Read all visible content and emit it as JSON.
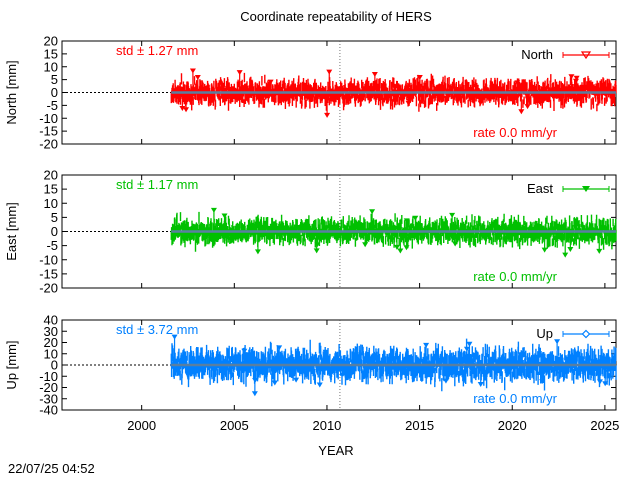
{
  "title": "Coordinate repeatability of HERS",
  "timestamp": "22/07/25 04:52",
  "xlabel": "YEAR",
  "xticks": [
    "2000",
    "2005",
    "2010",
    "2015",
    "2020",
    "2025"
  ],
  "colors": {
    "north": "#ff0000",
    "east": "#00c000",
    "up": "#0080ff",
    "trend": "#5a7fa0"
  },
  "chart_data": [
    {
      "type": "scatter",
      "series": [
        {
          "name": "North"
        }
      ],
      "ylabel": "North [mm]",
      "ylim": [
        -20,
        20
      ],
      "yticks": [
        "20",
        "15",
        "10",
        "5",
        "0",
        "-5",
        "-10",
        "-15",
        "-20"
      ],
      "xlim": [
        1995.7,
        2025.6
      ],
      "data_range": [
        2001.6,
        2025.6
      ],
      "std_label": "std ± 1.27 mm",
      "rate_label": "rate  0.0 mm/yr",
      "rate": 0.0,
      "std": 1.27,
      "reference_line_x": 2010.7
    },
    {
      "type": "scatter",
      "series": [
        {
          "name": "East"
        }
      ],
      "ylabel": "East [mm]",
      "ylim": [
        -20,
        20
      ],
      "yticks": [
        "20",
        "15",
        "10",
        "5",
        "0",
        "-5",
        "-10",
        "-15",
        "-20"
      ],
      "xlim": [
        1995.7,
        2025.6
      ],
      "data_range": [
        2001.6,
        2025.6
      ],
      "std_label": "std ± 1.17 mm",
      "rate_label": "rate  0.0 mm/yr",
      "rate": 0.0,
      "std": 1.17,
      "reference_line_x": 2010.7
    },
    {
      "type": "scatter",
      "series": [
        {
          "name": "Up"
        }
      ],
      "ylabel": "Up [mm]",
      "ylim": [
        -40,
        40
      ],
      "yticks": [
        "40",
        "30",
        "20",
        "10",
        "0",
        "-10",
        "-20",
        "-30",
        "-40"
      ],
      "xlim": [
        1995.7,
        2025.6
      ],
      "data_range": [
        1,
        2025.6
      ],
      "std_label": "std ± 3.72 mm",
      "rate_label": "rate  0.0 mm/yr",
      "rate": 0.0,
      "std": 3.72,
      "reference_line_x": 2010.7
    }
  ]
}
